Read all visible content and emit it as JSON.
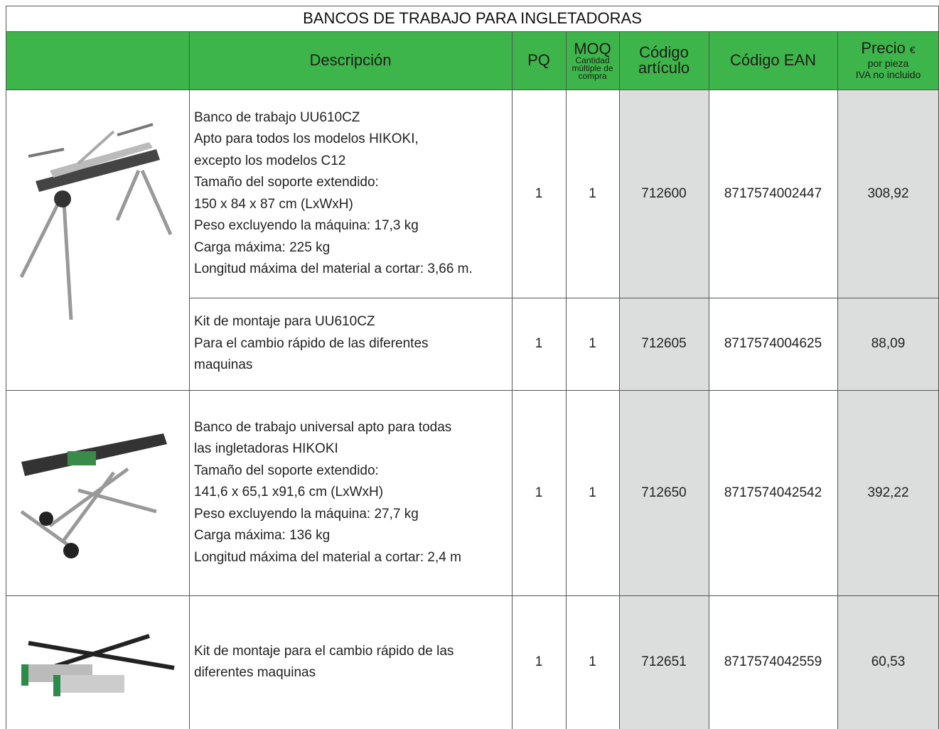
{
  "title": "BANCOS DE TRABAJO PARA INGLETADORAS",
  "header": {
    "description": "Descripción",
    "pq": "PQ",
    "moq": "MOQ",
    "moq_note": [
      "Cantidad",
      "múltiple de",
      "compra"
    ],
    "code": [
      "Código",
      "artículo"
    ],
    "ean": "Código EAN",
    "price": "Precio",
    "currency": "€",
    "price_note": [
      "por pieza",
      "IVA no incluido"
    ]
  },
  "rows": [
    {
      "description": [
        "Banco de trabajo UU610CZ",
        "Apto para todos los modelos HIKOKI,",
        "excepto los modelos C12",
        "Tamaño del soporte extendido:",
        "150 x 84 x 87 cm (LxWxH)",
        "Peso excluyendo la máquina: 17,3 kg",
        "Carga máxima: 225 kg",
        "Longitud máxima del material a cortar: 3,66 m."
      ],
      "pq": "1",
      "moq": "1",
      "code": "712600",
      "ean": "8717574002447",
      "price": "308,92"
    },
    {
      "description": [
        "Kit de montaje  para UU610CZ",
        "Para el cambio rápido de las diferentes",
        "maquinas"
      ],
      "pq": "1",
      "moq": "1",
      "code": "712605",
      "ean": "8717574004625",
      "price": "88,09"
    },
    {
      "description": [
        "Banco de trabajo universal apto para todas",
        "las ingletadoras HIKOKI",
        "Tamaño del soporte extendido:",
        "141,6 x 65,1 x91,6 cm (LxWxH)",
        "Peso excluyendo la máquina: 27,7 kg",
        "Carga máxima: 136 kg",
        "Longitud máxima del material a cortar: 2,4 m"
      ],
      "pq": "1",
      "moq": "1",
      "code": "712650",
      "ean": "8717574042542",
      "price": "392,22"
    },
    {
      "description": [
        "Kit de montaje  para el cambio rápido de las",
        "diferentes maquinas"
      ],
      "pq": "1",
      "moq": "1",
      "code": "712651",
      "ean": "8717574042559",
      "price": "60,53"
    }
  ]
}
